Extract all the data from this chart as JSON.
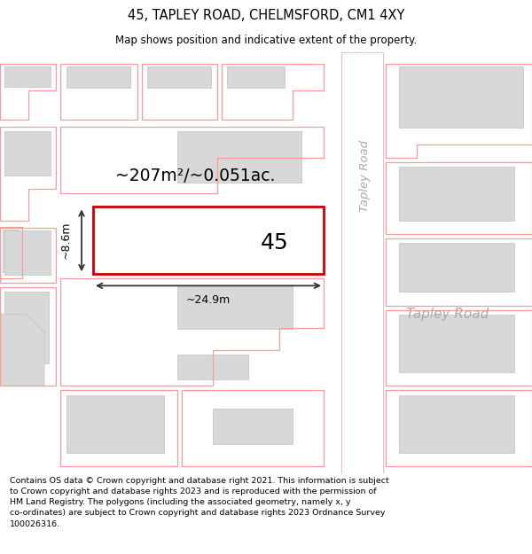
{
  "title": "45, TAPLEY ROAD, CHELMSFORD, CM1 4XY",
  "subtitle": "Map shows position and indicative extent of the property.",
  "footer": "Contains OS data © Crown copyright and database right 2021. This information is subject to Crown copyright and database rights 2023 and is reproduced with the permission of\nHM Land Registry. The polygons (including the associated geometry, namely x, y\nco-ordinates) are subject to Crown copyright and database rights 2023 Ordnance Survey\n100026316.",
  "area_text": "~207m²/~0.051ac.",
  "dim_width": "~24.9m",
  "dim_height": "~8.6m",
  "number_label": "45",
  "road_name_vertical": "Tapley Road",
  "road_name_horizontal": "Tapley Road",
  "map_bg": "#ffffff",
  "building_fill": "#d8d8d8",
  "building_edge": "#c8c8c8",
  "plot_outline_color": "#ff6666",
  "property_red": "#dd0000",
  "road_text_color": "#aaaaaa",
  "dim_color": "#333333"
}
